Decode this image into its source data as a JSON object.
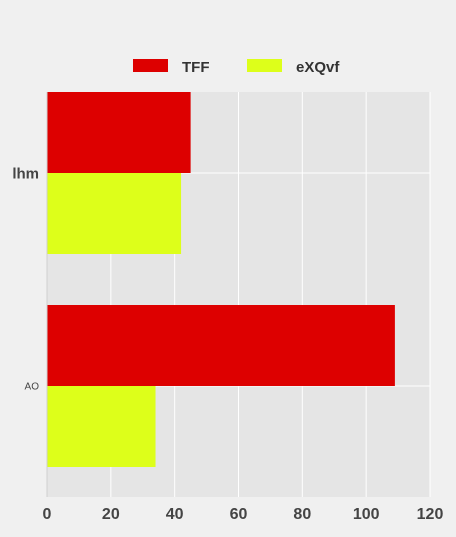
{
  "chart_data": {
    "type": "bar",
    "orientation": "horizontal",
    "categories": [
      "lhm",
      "AO"
    ],
    "series": [
      {
        "name": "TFF",
        "color": "#dd0000",
        "values": [
          45,
          109
        ]
      },
      {
        "name": "eXQvf",
        "color": "#ddff1a",
        "values": [
          42,
          34
        ]
      }
    ],
    "xlim": [
      0,
      120
    ],
    "xticks": [
      0,
      20,
      40,
      60,
      80,
      100,
      120
    ],
    "grid": true,
    "legend_position": "top",
    "background": "#f0f0f0",
    "plot_background": "#e5e5e5"
  }
}
